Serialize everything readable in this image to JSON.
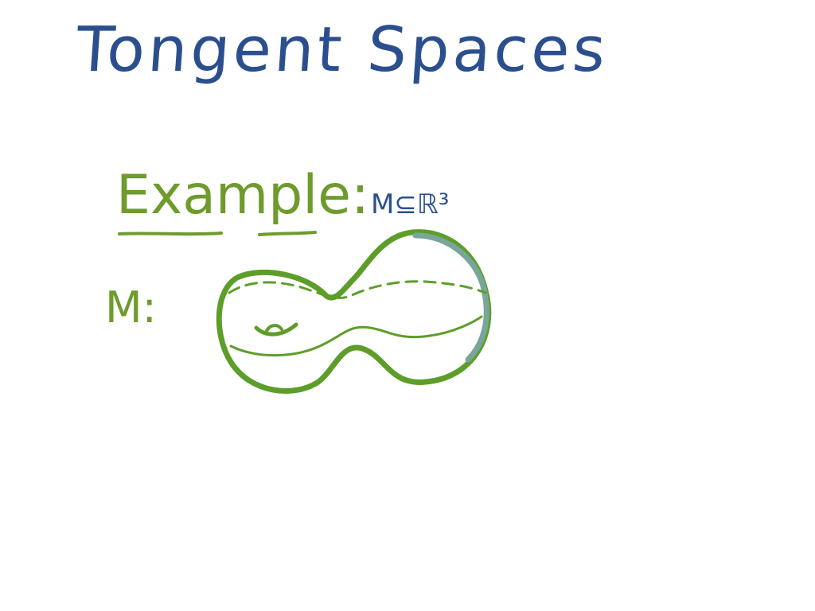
{
  "title": "Tongent Spaces",
  "example": {
    "label": "Example:",
    "manifold_note": "M⊆ℝ³",
    "m_label": "M:"
  },
  "colors": {
    "title_ink": "#2b4f8e",
    "example_ink": "#6e9b2c",
    "surface_ink": "#5d9e2a",
    "shade_ink": "#7aa59a"
  },
  "drawing": {
    "surface_icon": "double-torus-surface"
  }
}
